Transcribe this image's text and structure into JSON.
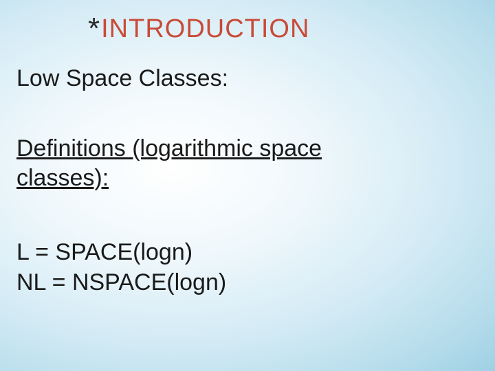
{
  "title": {
    "bullet": "*",
    "text": "INTRODUCTION",
    "bullet_color": "#2a2a2a",
    "text_color": "#c84b37",
    "fontsize": 38
  },
  "subtitle": {
    "text": "Low Space Classes:",
    "color": "#1a1a1a",
    "fontsize": 34
  },
  "definitions": {
    "line1": "Definitions (logarithmic space",
    "line2": "classes):",
    "color": "#1a1a1a",
    "fontsize": 34,
    "underline": true
  },
  "formulas": {
    "line1": "L = SPACE(logn)",
    "line2": "NL = NSPACE(logn)",
    "color": "#1a1a1a",
    "fontsize": 34
  },
  "background": {
    "gradient_center": "#ffffff",
    "gradient_edge": "#9fd0e4"
  }
}
